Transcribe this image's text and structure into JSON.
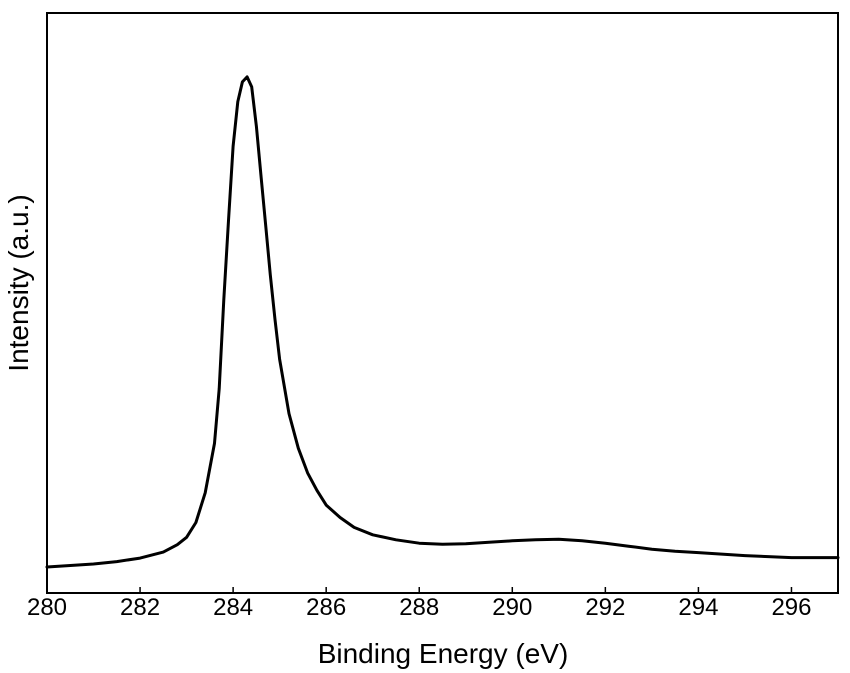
{
  "chart_data": {
    "type": "line",
    "title": "",
    "xlabel": "Binding Energy (eV)",
    "ylabel": "Intensity (a.u.)",
    "xlim": [
      280,
      297
    ],
    "ylim": [
      0,
      1
    ],
    "x_ticks": [
      280,
      282,
      284,
      286,
      288,
      290,
      292,
      294,
      296
    ],
    "x_tick_labels": [
      "280",
      "282",
      "284",
      "286",
      "288",
      "290",
      "292",
      "294",
      "296"
    ],
    "y_ticks_shown": false,
    "grid": false,
    "legend": "none",
    "line_color": "#000000",
    "series": [
      {
        "x": [
          280.0,
          280.5,
          281.0,
          281.5,
          282.0,
          282.5,
          282.8,
          283.0,
          283.2,
          283.4,
          283.6,
          283.7,
          283.8,
          283.9,
          284.0,
          284.1,
          284.2,
          284.3,
          284.4,
          284.5,
          284.6,
          284.7,
          284.8,
          284.9,
          285.0,
          285.2,
          285.4,
          285.6,
          285.8,
          286.0,
          286.3,
          286.6,
          287.0,
          287.5,
          288.0,
          288.5,
          289.0,
          289.5,
          290.0,
          290.5,
          291.0,
          291.5,
          292.0,
          292.5,
          293.0,
          293.5,
          294.0,
          294.5,
          295.0,
          295.5,
          296.0,
          296.5,
          297.0
        ],
        "y": [
          0.0,
          0.003,
          0.006,
          0.011,
          0.018,
          0.03,
          0.045,
          0.06,
          0.09,
          0.15,
          0.25,
          0.36,
          0.54,
          0.7,
          0.85,
          0.94,
          0.98,
          0.99,
          0.97,
          0.89,
          0.79,
          0.69,
          0.59,
          0.5,
          0.42,
          0.31,
          0.24,
          0.19,
          0.155,
          0.125,
          0.1,
          0.08,
          0.065,
          0.055,
          0.048,
          0.046,
          0.047,
          0.05,
          0.053,
          0.055,
          0.056,
          0.053,
          0.048,
          0.042,
          0.036,
          0.032,
          0.029,
          0.026,
          0.023,
          0.021,
          0.019,
          0.019,
          0.019
        ]
      }
    ]
  }
}
